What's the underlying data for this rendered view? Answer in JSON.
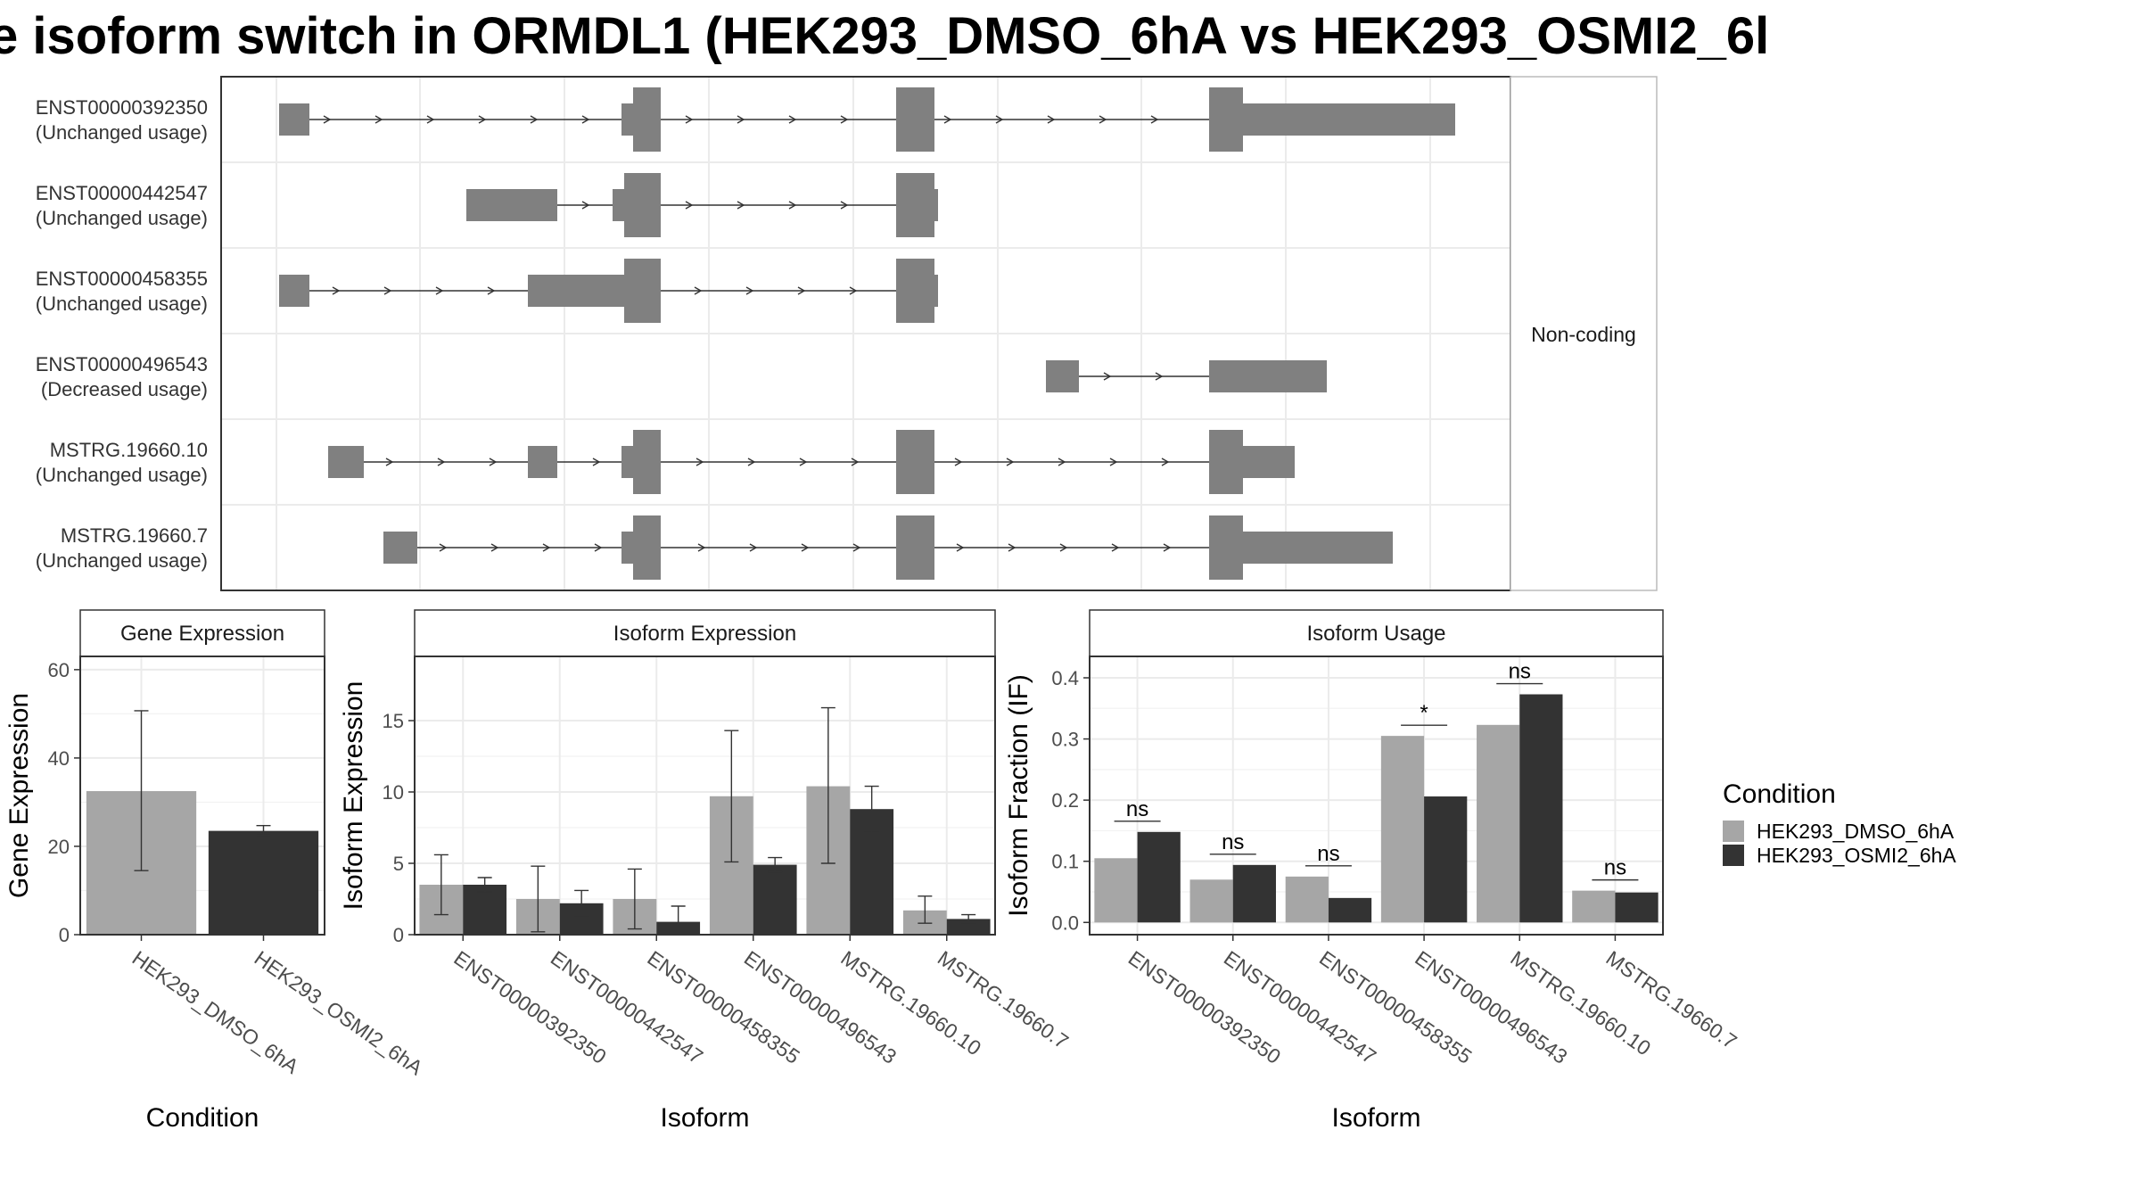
{
  "title": "e isoform switch in ORMDL1 (HEK293_DMSO_6hA vs HEK293_OSMI2_6l",
  "colors": {
    "dmso": "#a6a6a6",
    "osmi": "#333333",
    "exon": "#808080",
    "grid": "#ebebeb"
  },
  "chart_data": [
    {
      "type": "diagram",
      "panel": "transcript-structure",
      "strip_label": "Non-coding",
      "transcripts": [
        {
          "id": "ENST00000392350",
          "usage": "(Unchanged usage)"
        },
        {
          "id": "ENST00000442547",
          "usage": "(Unchanged usage)"
        },
        {
          "id": "ENST00000458355",
          "usage": "(Unchanged usage)"
        },
        {
          "id": "ENST00000496543",
          "usage": "(Decreased usage)"
        },
        {
          "id": "MSTRG.19660.10",
          "usage": "(Unchanged usage)"
        },
        {
          "id": "MSTRG.19660.7",
          "usage": "(Unchanged usage)"
        }
      ]
    },
    {
      "type": "bar",
      "facet": "Gene Expression",
      "xlabel": "Condition",
      "ylabel": "Gene Expression",
      "ylim": [
        0,
        63
      ],
      "yticks": [
        0,
        20,
        40,
        60
      ],
      "categories": [
        "HEK293_DMSO_6hA",
        "HEK293_OSMI2_6hA"
      ],
      "values": [
        32.5,
        23.5
      ],
      "error": [
        [
          14.5,
          50.7
        ],
        [
          22.5,
          24.7
        ]
      ]
    },
    {
      "type": "bar",
      "facet": "Isoform Expression",
      "xlabel": "Isoform",
      "ylabel": "Isoform Expression",
      "ylim": [
        0,
        19.5
      ],
      "yticks": [
        0,
        5,
        10,
        15
      ],
      "categories": [
        "ENST00000392350",
        "ENST00000442547",
        "ENST00000458355",
        "ENST00000496543",
        "MSTRG.19660.10",
        "MSTRG.19660.7"
      ],
      "series": [
        {
          "name": "HEK293_DMSO_6hA",
          "values": [
            3.5,
            2.5,
            2.5,
            9.7,
            10.4,
            1.7
          ],
          "error": [
            [
              1.4,
              5.6
            ],
            [
              0.2,
              4.8
            ],
            [
              0.4,
              4.6
            ],
            [
              5.1,
              14.3
            ],
            [
              5.0,
              15.9
            ],
            [
              0.8,
              2.7
            ]
          ]
        },
        {
          "name": "HEK293_OSMI2_6hA",
          "values": [
            3.5,
            2.2,
            0.9,
            4.9,
            8.8,
            1.1
          ],
          "error": [
            [
              3.0,
              4.0
            ],
            [
              1.3,
              3.1
            ],
            [
              0.0,
              2.0
            ],
            [
              4.4,
              5.4
            ],
            [
              7.2,
              10.4
            ],
            [
              0.8,
              1.4
            ]
          ]
        }
      ]
    },
    {
      "type": "bar",
      "facet": "Isoform Usage",
      "xlabel": "Isoform",
      "ylabel": "Isoform Fraction (IF)",
      "ylim": [
        -0.02,
        0.435
      ],
      "yticks": [
        "0.0",
        "0.1",
        "0.2",
        "0.3",
        "0.4"
      ],
      "categories": [
        "ENST00000392350",
        "ENST00000442547",
        "ENST00000458355",
        "ENST00000496543",
        "MSTRG.19660.10",
        "MSTRG.19660.7"
      ],
      "series": [
        {
          "name": "HEK293_DMSO_6hA",
          "values": [
            0.105,
            0.07,
            0.075,
            0.305,
            0.323,
            0.052
          ]
        },
        {
          "name": "HEK293_OSMI2_6hA",
          "values": [
            0.148,
            0.094,
            0.04,
            0.206,
            0.373,
            0.049
          ]
        }
      ],
      "significance": [
        "ns",
        "ns",
        "ns",
        "*",
        "ns",
        "ns"
      ]
    }
  ],
  "legend": {
    "title": "Condition",
    "entries": [
      "HEK293_DMSO_6hA",
      "HEK293_OSMI2_6hA"
    ]
  }
}
